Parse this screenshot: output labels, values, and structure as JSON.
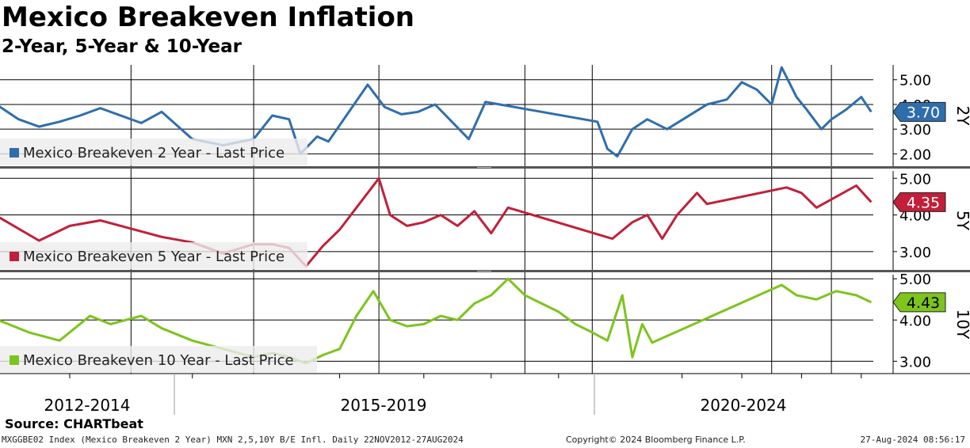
{
  "header": {
    "title": "Mexico Breakeven Inflation",
    "subtitle": "2-Year, 5-Year & 10-Year"
  },
  "footer": {
    "source": "Source: CHARTbeat",
    "left": "MXGGBE02 Index (Mexico Breakeven 2 Year) MXN 2,5,10Y B/E Infl.  Daily 22NOV2012-27AUG2024",
    "center": "Copyright© 2024 Bloomberg Finance L.P.",
    "right": "27-Aug-2024 08:56:17"
  },
  "chart_data": {
    "type": "line",
    "x_range": [
      "2012-11-22",
      "2024-08-27"
    ],
    "x_period_labels": [
      "2012-2014",
      "2015-2019",
      "2020-2024"
    ],
    "grid": true,
    "legend_placement": "bottom-left of each panel",
    "panels": [
      {
        "axis_label": "2Y",
        "ylim": [
          1.5,
          5.6
        ],
        "yticks": [
          "2.00",
          "3.00",
          "4.00",
          "5.00"
        ],
        "color": "#2f6ead",
        "series": [
          {
            "name": "Mexico Breakeven 2 Year  - Last Price",
            "last_value": "3.70",
            "points": [
              [
                "2012-11",
                3.95
              ],
              [
                "2013-01",
                3.4
              ],
              [
                "2013-03",
                3.1
              ],
              [
                "2013-05",
                3.3
              ],
              [
                "2013-07",
                3.55
              ],
              [
                "2013-09",
                3.85
              ],
              [
                "2014-01",
                3.25
              ],
              [
                "2014-03",
                3.7
              ],
              [
                "2014-06",
                2.6
              ],
              [
                "2014-09",
                2.35
              ],
              [
                "2014-12",
                2.6
              ],
              [
                "2015-03",
                3.55
              ],
              [
                "2015-06",
                3.4
              ],
              [
                "2015-08",
                2.0
              ],
              [
                "2015-11",
                2.7
              ],
              [
                "2016-01",
                2.5
              ],
              [
                "2016-08",
                4.8
              ],
              [
                "2016-11",
                3.9
              ],
              [
                "2017-02",
                3.6
              ],
              [
                "2017-05",
                3.7
              ],
              [
                "2017-08",
                4.0
              ],
              [
                "2017-11",
                3.3
              ],
              [
                "2018-02",
                2.6
              ],
              [
                "2018-05",
                4.1
              ],
              [
                "2020-01",
                3.3
              ],
              [
                "2020-03",
                2.2
              ],
              [
                "2020-05",
                1.9
              ],
              [
                "2020-08",
                3.0
              ],
              [
                "2020-11",
                3.4
              ],
              [
                "2021-03",
                3.0
              ],
              [
                "2021-11",
                4.0
              ],
              [
                "2022-03",
                4.2
              ],
              [
                "2022-06",
                4.9
              ],
              [
                "2022-09",
                4.6
              ],
              [
                "2022-12",
                4.0
              ],
              [
                "2023-02",
                5.5
              ],
              [
                "2023-05",
                4.3
              ],
              [
                "2023-07",
                3.8
              ],
              [
                "2023-10",
                3.0
              ],
              [
                "2023-12",
                3.4
              ],
              [
                "2024-03",
                3.8
              ],
              [
                "2024-06",
                4.3
              ],
              [
                "2024-08",
                3.7
              ]
            ]
          }
        ]
      },
      {
        "axis_label": "5Y",
        "ylim": [
          2.5,
          5.2
        ],
        "yticks": [
          "3.00",
          "4.00",
          "5.00"
        ],
        "color": "#c21f3a",
        "series": [
          {
            "name": "Mexico Breakeven 5 Year  - Last Price",
            "last_value": "4.35",
            "points": [
              [
                "2012-11",
                3.95
              ],
              [
                "2013-03",
                3.3
              ],
              [
                "2013-06",
                3.7
              ],
              [
                "2013-09",
                3.85
              ],
              [
                "2014-03",
                3.4
              ],
              [
                "2014-06",
                3.25
              ],
              [
                "2014-09",
                2.95
              ],
              [
                "2014-12",
                3.2
              ],
              [
                "2015-03",
                3.2
              ],
              [
                "2015-06",
                3.1
              ],
              [
                "2015-09",
                2.6
              ],
              [
                "2015-12",
                3.15
              ],
              [
                "2016-03",
                3.6
              ],
              [
                "2016-06",
                4.2
              ],
              [
                "2016-10",
                5.0
              ],
              [
                "2016-12",
                4.0
              ],
              [
                "2017-03",
                3.7
              ],
              [
                "2017-06",
                3.8
              ],
              [
                "2017-09",
                4.0
              ],
              [
                "2017-12",
                3.7
              ],
              [
                "2018-03",
                4.1
              ],
              [
                "2018-06",
                3.5
              ],
              [
                "2018-09",
                4.2
              ],
              [
                "2020-04",
                3.35
              ],
              [
                "2020-08",
                3.8
              ],
              [
                "2020-11",
                4.0
              ],
              [
                "2021-02",
                3.35
              ],
              [
                "2021-05",
                4.0
              ],
              [
                "2021-09",
                4.6
              ],
              [
                "2021-11",
                4.3
              ],
              [
                "2023-03",
                4.75
              ],
              [
                "2023-06",
                4.6
              ],
              [
                "2023-09",
                4.2
              ],
              [
                "2024-01",
                4.5
              ],
              [
                "2024-05",
                4.8
              ],
              [
                "2024-08",
                4.35
              ]
            ]
          }
        ]
      },
      {
        "axis_label": "10Y",
        "ylim": [
          2.7,
          5.1
        ],
        "yticks": [
          "3.00",
          "4.00",
          "5.00"
        ],
        "color": "#7dc41d",
        "series": [
          {
            "name": "Mexico Breakeven 10 Year  - Last Price",
            "last_value": "4.43",
            "points": [
              [
                "2012-11",
                4.0
              ],
              [
                "2013-02",
                3.7
              ],
              [
                "2013-05",
                3.5
              ],
              [
                "2013-08",
                4.1
              ],
              [
                "2013-10",
                3.9
              ],
              [
                "2014-01",
                4.1
              ],
              [
                "2014-03",
                3.8
              ],
              [
                "2014-06",
                3.5
              ],
              [
                "2014-09",
                3.3
              ],
              [
                "2014-12",
                3.1
              ],
              [
                "2015-03",
                3.2
              ],
              [
                "2015-06",
                3.1
              ],
              [
                "2015-09",
                2.95
              ],
              [
                "2015-12",
                3.15
              ],
              [
                "2016-03",
                3.3
              ],
              [
                "2016-06",
                4.1
              ],
              [
                "2016-09",
                4.7
              ],
              [
                "2016-12",
                4.0
              ],
              [
                "2017-03",
                3.85
              ],
              [
                "2017-06",
                3.9
              ],
              [
                "2017-09",
                4.1
              ],
              [
                "2017-12",
                4.0
              ],
              [
                "2018-03",
                4.4
              ],
              [
                "2018-06",
                4.6
              ],
              [
                "2018-09",
                5.0
              ],
              [
                "2018-12",
                4.6
              ],
              [
                "2019-03",
                4.4
              ],
              [
                "2019-06",
                4.2
              ],
              [
                "2019-09",
                3.9
              ],
              [
                "2019-12",
                3.7
              ],
              [
                "2020-03",
                3.5
              ],
              [
                "2020-06",
                4.6
              ],
              [
                "2020-08",
                3.1
              ],
              [
                "2020-10",
                3.9
              ],
              [
                "2020-12",
                3.45
              ],
              [
                "2023-02",
                4.85
              ],
              [
                "2023-05",
                4.6
              ],
              [
                "2023-09",
                4.5
              ],
              [
                "2024-01",
                4.7
              ],
              [
                "2024-05",
                4.6
              ],
              [
                "2024-08",
                4.43
              ]
            ]
          }
        ]
      }
    ]
  }
}
